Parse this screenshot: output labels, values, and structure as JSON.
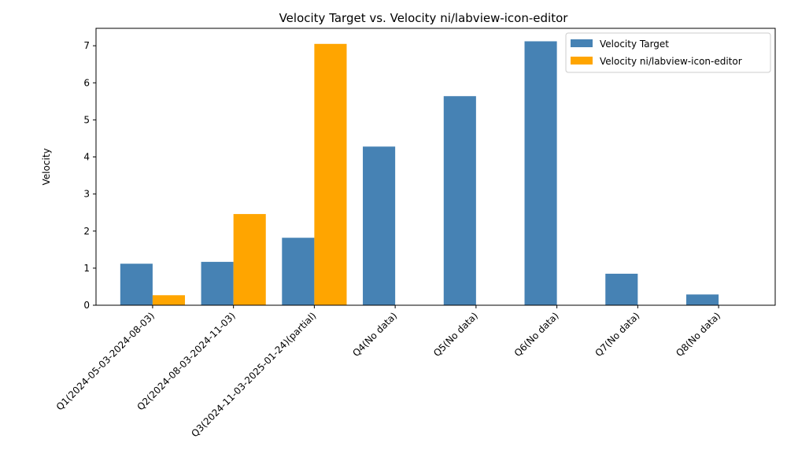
{
  "chart_data": {
    "type": "bar",
    "title": "Velocity Target vs. Velocity ni/labview-icon-editor",
    "xlabel": "",
    "ylabel": "Velocity",
    "categories": [
      "Q1(2024-05-03-2024-08-03)",
      "Q2(2024-08-03-2024-11-03)",
      "Q3(2024-11-03-2025-01-24)(partial)",
      "Q4(No data)",
      "Q5(No data)",
      "Q6(No data)",
      "Q7(No data)",
      "Q8(No data)"
    ],
    "series": [
      {
        "name": "Velocity Target",
        "color": "#4682b4",
        "values": [
          1.12,
          1.17,
          1.82,
          4.28,
          5.64,
          7.12,
          0.85,
          0.29
        ]
      },
      {
        "name": "Velocity ni/labview-icon-editor",
        "color": "#ffa500",
        "values": [
          0.27,
          2.46,
          7.05,
          0,
          0,
          0,
          0,
          0
        ]
      }
    ],
    "ylim": [
      0,
      7.47
    ],
    "yticks": [
      0,
      1,
      2,
      3,
      4,
      5,
      6,
      7
    ],
    "grid": false,
    "legend": "top-right"
  }
}
